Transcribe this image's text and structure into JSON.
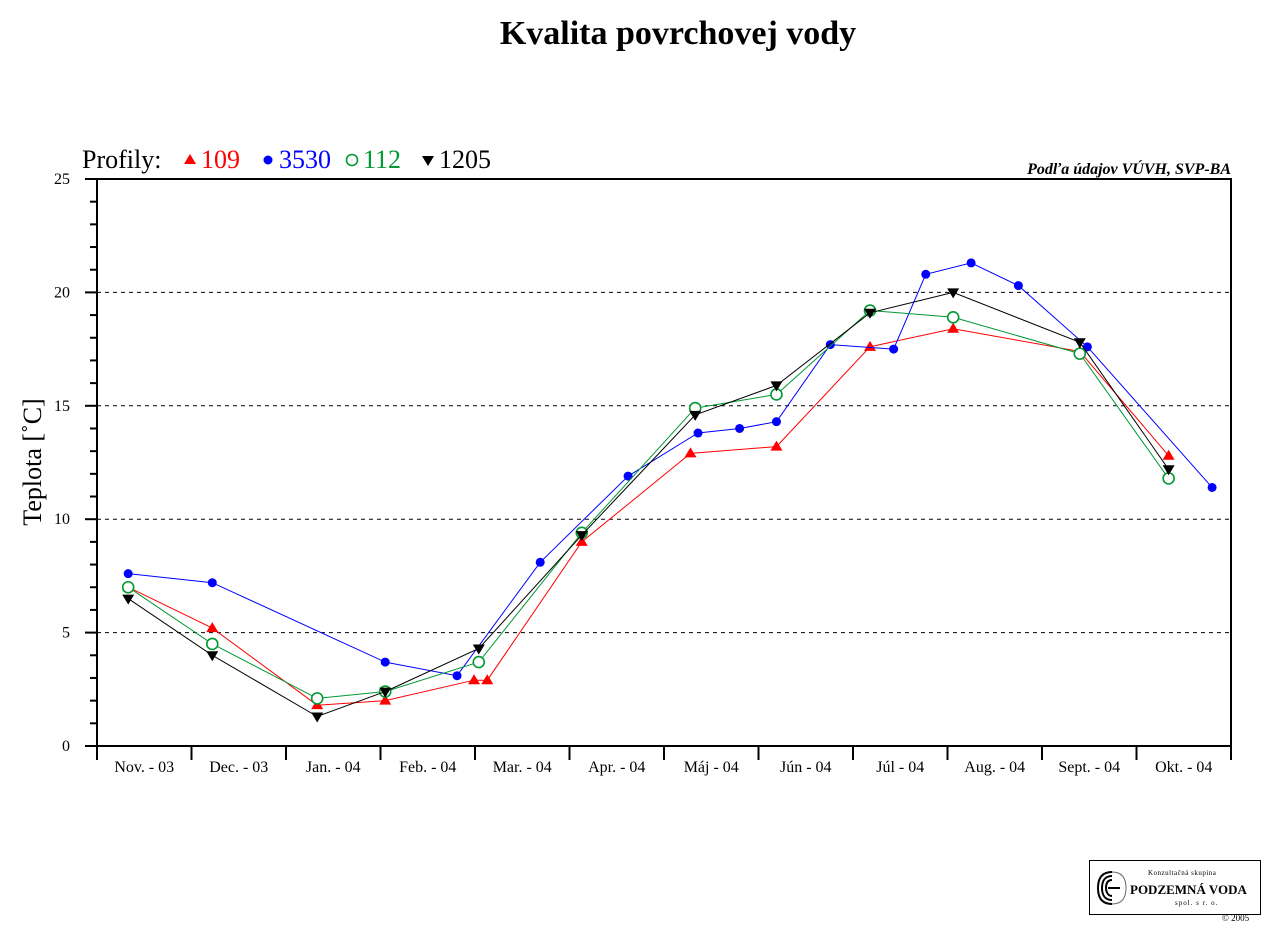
{
  "chart_data": {
    "type": "line",
    "title": "Kvalita povrchovej vody",
    "source_note": "Podľa údajov VÚVH, SVP-BA",
    "ylabel": "Teplota [˚C]",
    "ylim": [
      0,
      25
    ],
    "y_ticks": [
      "0",
      "5",
      "10",
      "15",
      "20",
      "25"
    ],
    "grid": "dashed horizontal at 5, 10, 15, 20",
    "legend_prefix": "Profily:",
    "legend_placement": "top-left",
    "categories": [
      "Nov. - 03",
      "Dec. - 03",
      "Jan. - 04",
      "Feb. - 04",
      "Mar. - 04",
      "Apr. - 04",
      "Máj - 04",
      "Jún - 04",
      "Júl - 04",
      "Aug. - 04",
      "Sept. - 04",
      "Okt. - 04"
    ],
    "x_unit": "month index from Nov. - 03 (0 = start of Nov. - 03)",
    "series": [
      {
        "name": "109",
        "color": "#ff0000",
        "marker": "triangle-up",
        "points": [
          [
            0.33,
            7.0
          ],
          [
            1.22,
            5.2
          ],
          [
            2.33,
            1.8
          ],
          [
            3.05,
            2.0
          ],
          [
            3.99,
            2.9
          ],
          [
            4.13,
            2.9
          ],
          [
            5.13,
            9.0
          ],
          [
            6.28,
            12.9
          ],
          [
            7.19,
            13.2
          ],
          [
            8.18,
            17.6
          ],
          [
            9.06,
            18.4
          ],
          [
            10.4,
            17.4
          ],
          [
            11.34,
            12.8
          ]
        ]
      },
      {
        "name": "3530",
        "color": "#0000ff",
        "marker": "circle-filled",
        "points": [
          [
            0.33,
            7.6
          ],
          [
            1.22,
            7.2
          ],
          [
            3.05,
            3.7
          ],
          [
            3.81,
            3.1
          ],
          [
            4.69,
            8.1
          ],
          [
            5.62,
            11.9
          ],
          [
            6.36,
            13.8
          ],
          [
            6.8,
            14.0
          ],
          [
            7.19,
            14.3
          ],
          [
            7.76,
            17.7
          ],
          [
            8.43,
            17.5
          ],
          [
            8.77,
            20.8
          ],
          [
            9.25,
            21.3
          ],
          [
            9.75,
            20.3
          ],
          [
            10.48,
            17.6
          ],
          [
            11.8,
            11.4
          ]
        ]
      },
      {
        "name": "112",
        "color": "#009933",
        "marker": "circle-open",
        "points": [
          [
            0.33,
            7.0
          ],
          [
            1.22,
            4.5
          ],
          [
            2.33,
            2.1
          ],
          [
            3.05,
            2.4
          ],
          [
            4.04,
            3.7
          ],
          [
            5.13,
            9.4
          ],
          [
            6.33,
            14.9
          ],
          [
            7.19,
            15.5
          ],
          [
            8.18,
            19.2
          ],
          [
            9.06,
            18.9
          ],
          [
            10.4,
            17.3
          ],
          [
            11.34,
            11.8
          ]
        ]
      },
      {
        "name": "1205",
        "color": "#000000",
        "marker": "triangle-down",
        "points": [
          [
            0.33,
            6.5
          ],
          [
            1.22,
            4.0
          ],
          [
            2.33,
            1.3
          ],
          [
            3.05,
            2.4
          ],
          [
            4.04,
            4.3
          ],
          [
            5.13,
            9.3
          ],
          [
            6.33,
            14.6
          ],
          [
            7.19,
            15.9
          ],
          [
            8.18,
            19.1
          ],
          [
            9.06,
            20.0
          ],
          [
            10.4,
            17.8
          ],
          [
            11.34,
            12.2
          ]
        ]
      }
    ]
  },
  "logo": {
    "top_text": "Konzultačná skupina",
    "main_text": "PODZEMNÁ VODA",
    "sub_text": "spol. s r. o.",
    "copyright": "© 2005"
  }
}
